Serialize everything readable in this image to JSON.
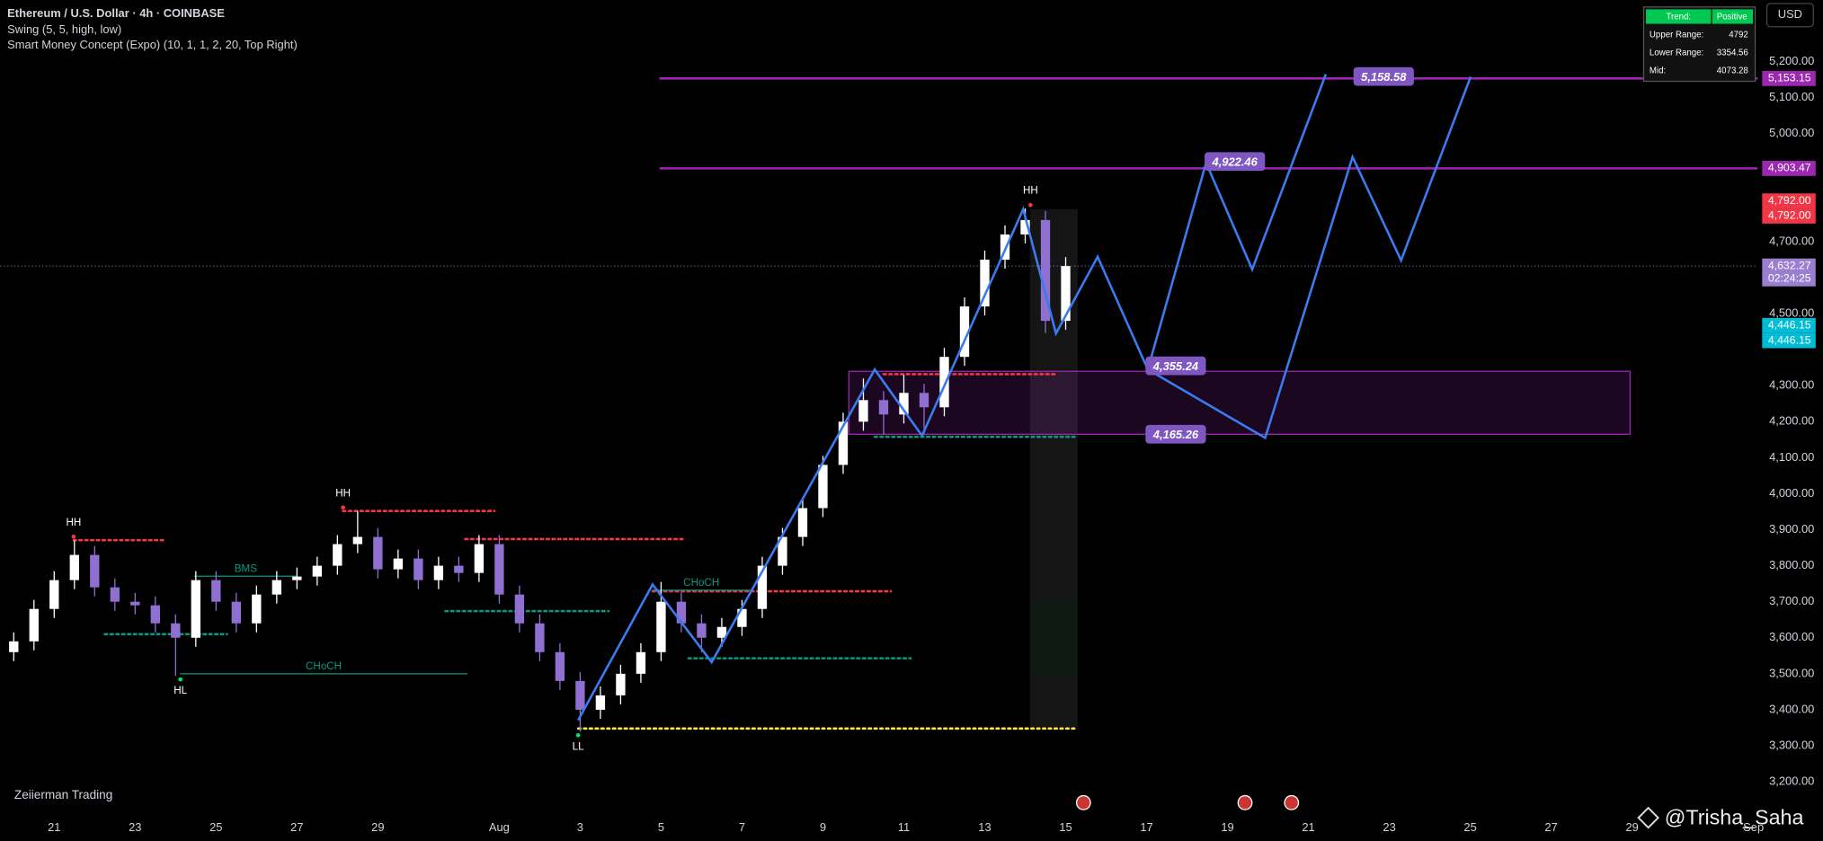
{
  "chart_data": {
    "type": "candlestick",
    "title": "Ethereum / U.S. Dollar · 4h · COINBASE",
    "indicators": [
      "Swing (5, 5, high, low)",
      "Smart Money Concept (Expo) (10, 1, 1, 2, 20, Top Right)"
    ],
    "branding": "Zeiierman Trading",
    "watermark": "@Trisha_Saha",
    "currency": "USD",
    "up_color": "#ffffff",
    "down_color": "#8f6fd0",
    "xlim": [
      19.67,
      63.1
    ],
    "ylim": [
      3113,
      5371
    ],
    "xticks": [
      21,
      23,
      25,
      27,
      29,
      {
        "value": 32,
        "label": "Aug"
      },
      {
        "value": 34,
        "label": "3"
      },
      {
        "value": 36,
        "label": "5"
      },
      {
        "value": 38,
        "label": "7"
      },
      {
        "value": 40,
        "label": "9"
      },
      {
        "value": 42,
        "label": "11"
      },
      {
        "value": 44,
        "label": "13"
      },
      {
        "value": 46,
        "label": "15"
      },
      {
        "value": 48,
        "label": "17"
      },
      {
        "value": 50,
        "label": "19"
      },
      {
        "value": 52,
        "label": "21"
      },
      {
        "value": 54,
        "label": "23"
      },
      {
        "value": 56,
        "label": "25"
      },
      {
        "value": 58,
        "label": "27"
      },
      {
        "value": 60,
        "label": "29"
      },
      {
        "value": 63,
        "label": "Sep"
      }
    ],
    "yticks": [
      {
        "value": 5200,
        "label": "5,200.00"
      },
      {
        "value": 5100,
        "label": "5,100.00"
      },
      {
        "value": 5000,
        "label": "5,000.00"
      },
      {
        "value": 4700,
        "label": "4,700.00"
      },
      {
        "value": 4500,
        "label": "4,500.00"
      },
      {
        "value": 4300,
        "label": "4,300.00"
      },
      {
        "value": 4200,
        "label": "4,200.00"
      },
      {
        "value": 4100,
        "label": "4,100.00"
      },
      {
        "value": 4000,
        "label": "4,000.00"
      },
      {
        "value": 3900,
        "label": "3,900.00"
      },
      {
        "value": 3800,
        "label": "3,800.00"
      },
      {
        "value": 3700,
        "label": "3,700.00"
      },
      {
        "value": 3600,
        "label": "3,600.00"
      },
      {
        "value": 3500,
        "label": "3,500.00"
      },
      {
        "value": 3400,
        "label": "3,400.00"
      },
      {
        "value": 3300,
        "label": "3,300.00"
      },
      {
        "value": 3200,
        "label": "3,200.00"
      }
    ],
    "candles": {
      "x": [
        20,
        20.5,
        21,
        21.5,
        22,
        22.5,
        23,
        23.5,
        24,
        24.5,
        25,
        25.5,
        26,
        26.5,
        27,
        27.5,
        28,
        28.5,
        29,
        29.5,
        30,
        30.5,
        31,
        31.5,
        32,
        32.5,
        33,
        33.5,
        34,
        34.5,
        35,
        35.5,
        36,
        36.5,
        37,
        37.5,
        38,
        38.5,
        39,
        39.5,
        40,
        40.5,
        41,
        41.5,
        42,
        42.5,
        43,
        43.5,
        44,
        44.5,
        45,
        45.5,
        46
      ],
      "open": [
        3560,
        3590,
        3680,
        3760,
        3830,
        3740,
        3700,
        3690,
        3640,
        3600,
        3760,
        3700,
        3640,
        3720,
        3760,
        3770,
        3800,
        3860,
        3880,
        3790,
        3820,
        3760,
        3800,
        3780,
        3860,
        3720,
        3640,
        3560,
        3480,
        3400,
        3440,
        3500,
        3560,
        3700,
        3640,
        3600,
        3630,
        3680,
        3800,
        3880,
        3960,
        4080,
        4200,
        4260,
        4220,
        4280,
        4240,
        4380,
        4520,
        4650,
        4720,
        4760,
        4480
      ],
      "high": [
        3615,
        3705,
        3785,
        3871,
        3855,
        3765,
        3725,
        3715,
        3665,
        3785,
        3785,
        3725,
        3745,
        3785,
        3795,
        3825,
        3885,
        3952,
        3905,
        3845,
        3845,
        3825,
        3825,
        3885,
        3885,
        3745,
        3665,
        3585,
        3505,
        3465,
        3525,
        3585,
        3755,
        3725,
        3665,
        3655,
        3705,
        3825,
        3905,
        3985,
        4105,
        4225,
        4320,
        4285,
        4330,
        4305,
        4405,
        4545,
        4675,
        4745,
        4792,
        4785,
        4657
      ],
      "low": [
        3535,
        3565,
        3655,
        3735,
        3715,
        3675,
        3665,
        3615,
        3494,
        3575,
        3675,
        3615,
        3615,
        3695,
        3735,
        3745,
        3775,
        3835,
        3765,
        3765,
        3735,
        3735,
        3755,
        3755,
        3695,
        3615,
        3535,
        3455,
        3339,
        3375,
        3415,
        3475,
        3535,
        3615,
        3560,
        3575,
        3605,
        3655,
        3775,
        3855,
        3935,
        4055,
        4175,
        4165,
        4195,
        4165,
        4215,
        4355,
        4495,
        4625,
        4695,
        4446,
        4455
      ],
      "close": [
        3590,
        3680,
        3760,
        3830,
        3740,
        3700,
        3690,
        3640,
        3600,
        3760,
        3700,
        3640,
        3720,
        3760,
        3770,
        3800,
        3860,
        3880,
        3790,
        3820,
        3760,
        3800,
        3780,
        3860,
        3720,
        3640,
        3560,
        3480,
        3400,
        3440,
        3500,
        3560,
        3700,
        3640,
        3600,
        3630,
        3680,
        3800,
        3880,
        3960,
        4080,
        4200,
        4260,
        4220,
        4280,
        4240,
        4380,
        4520,
        4650,
        4720,
        4760,
        4480,
        4632
      ]
    },
    "current_price": 4632.27,
    "swings": [
      {
        "text": "HH",
        "x": 21.48,
        "price": 3871,
        "pos": "above"
      },
      {
        "text": "HL",
        "x": 24.12,
        "price": 3494,
        "pos": "below"
      },
      {
        "text": "HH",
        "x": 28.14,
        "price": 3952,
        "pos": "above"
      },
      {
        "text": "LL",
        "x": 33.95,
        "price": 3339,
        "pos": "below"
      },
      {
        "text": "HH",
        "x": 45.13,
        "price": 4792,
        "pos": "above"
      }
    ],
    "structures": [
      {
        "price": 3871,
        "x": [
          21.48,
          23.69
        ],
        "color": "#f23645",
        "style": "dotted"
      },
      {
        "price": 3952,
        "x": [
          28.14,
          31.88
        ],
        "color": "#f23645",
        "style": "dotted"
      },
      {
        "price": 3874,
        "x": [
          31.16,
          36.53
        ],
        "color": "#f23645",
        "style": "dotted"
      },
      {
        "price": 3729,
        "x": [
          35.79,
          41.68
        ],
        "color": "#f23645",
        "style": "dotted"
      },
      {
        "price": 4332,
        "x": [
          41.5,
          45.8
        ],
        "color": "#f23645",
        "style": "dotted"
      },
      {
        "price": 3500,
        "x": [
          24.12,
          31.2
        ],
        "color": "#089981",
        "style": "solid",
        "label": "CHoCH"
      },
      {
        "price": 3771,
        "x": [
          24.47,
          27.0
        ],
        "color": "#089981",
        "style": "solid",
        "label": "BMS"
      },
      {
        "price": 3732,
        "x": [
          35.79,
          38.2
        ],
        "color": "#089981",
        "style": "solid",
        "label": "CHoCH"
      },
      {
        "price": 3610,
        "x": [
          22.25,
          25.27
        ],
        "color": "#089981",
        "style": "dotted"
      },
      {
        "price": 3674,
        "x": [
          30.67,
          34.7
        ],
        "color": "#089981",
        "style": "dotted"
      },
      {
        "price": 3543,
        "x": [
          36.68,
          42.17
        ],
        "color": "#089981",
        "style": "dotted"
      },
      {
        "price": 4158,
        "x": [
          41.28,
          46.25
        ],
        "color": "#089981",
        "style": "dotted"
      },
      {
        "price": 3348,
        "x": [
          33.95,
          46.3
        ],
        "color": "#ffeb3b",
        "style": "dotted"
      }
    ],
    "levels": [
      {
        "price": 5153.15,
        "x": [
          35.96,
          63.1
        ],
        "color": "#9c27b0"
      },
      {
        "price": 4903.47,
        "x": [
          35.96,
          63.1
        ],
        "color": "#9c27b0"
      }
    ],
    "zone": {
      "top": 4340,
      "bottom": 4165,
      "x": [
        40.64,
        59.95
      ],
      "color": "#9c27b0"
    },
    "projection": {
      "color": "#3a7bef",
      "paths": [
        {
          "x": [
            33.95,
            35.79,
            37.25,
            41.28,
            42.45,
            44.95,
            45.76,
            46.79,
            48.03,
            49.47,
            50.61,
            52.43
          ],
          "price": [
            3371,
            3748,
            3532,
            4345,
            4161,
            4790,
            4445,
            4658,
            4345,
            4919,
            4623,
            5165
          ]
        },
        {
          "x": [
            48.03,
            50.93,
            53.09,
            54.29,
            56.01
          ],
          "price": [
            4345,
            4155,
            4935,
            4648,
            5158
          ]
        }
      ]
    },
    "targets": [
      {
        "label": "5,158.58",
        "value": 5158.58,
        "x": 53.86
      },
      {
        "label": "4,922.46",
        "value": 4922.46,
        "x": 50.18
      },
      {
        "label": "4,355.24",
        "value": 4355.24,
        "x": 48.72
      },
      {
        "label": "4,165.26",
        "value": 4165.26,
        "x": 48.72
      }
    ],
    "price_labels": [
      {
        "value": 5153.15,
        "label": "5,153.15",
        "color": "#9c27b0"
      },
      {
        "value": 4903.47,
        "label": "4,903.47",
        "color": "#9c27b0"
      },
      {
        "value": 4792,
        "label": "4,792.00",
        "color": "#f23645"
      },
      {
        "value": 4792,
        "label": "4,792.00",
        "color": "#f23645"
      },
      {
        "value": 4632.27,
        "label": "4,632.27",
        "color": "#9a7fd1",
        "sub": "02:24:25"
      },
      {
        "value": 4446.15,
        "label": "4,446.15",
        "color": "#00bcd4"
      },
      {
        "value": 4446.15,
        "label": "4,446.15",
        "color": "#00bcd4"
      }
    ],
    "info_table": [
      [
        "Trend:",
        "Positive"
      ],
      [
        "Upper Range:",
        "4792"
      ],
      [
        "Lower Range:",
        "3354.56"
      ],
      [
        "Mid:",
        "4073.28"
      ]
    ]
  }
}
